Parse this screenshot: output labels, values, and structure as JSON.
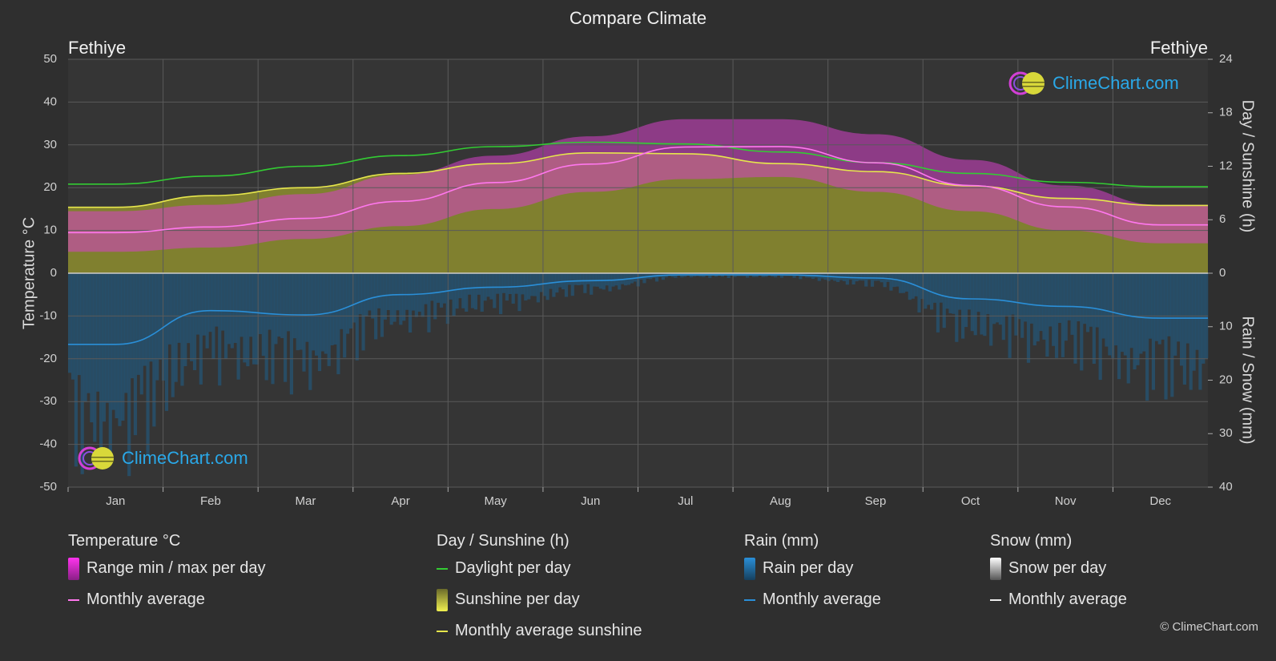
{
  "page": {
    "title": "Compare Climate",
    "location_left": "Fethiye",
    "location_right": "Fethiye",
    "copyright": "© ClimeChart.com",
    "logo_text": "ClimeChart.com"
  },
  "legend": {
    "temperature": {
      "heading": "Temperature °C",
      "range_label": "Range min / max per day",
      "avg_label": "Monthly average"
    },
    "sunshine": {
      "heading": "Day / Sunshine (h)",
      "daylight_label": "Daylight per day",
      "sunshine_label": "Sunshine per day",
      "avg_label": "Monthly average sunshine"
    },
    "rain": {
      "heading": "Rain (mm)",
      "rain_label": "Rain per day",
      "avg_label": "Monthly average"
    },
    "snow": {
      "heading": "Snow (mm)",
      "snow_label": "Snow per day",
      "avg_label": "Monthly average"
    }
  },
  "colors": {
    "background": "#2f2f2f",
    "temp_range": "#d63fc8",
    "temp_avg": "#ff77ee",
    "daylight": "#33cc33",
    "sunshine_fill": "#9a9a2e",
    "sunshine_avg": "#e6e64c",
    "rain": "#1e5f8a",
    "rain_avg": "#2a8fd8",
    "snow": "#dddddd",
    "logo": "#2aa8e8"
  },
  "chart_data": {
    "type": "area",
    "categories": [
      "Jan",
      "Feb",
      "Mar",
      "Apr",
      "May",
      "Jun",
      "Jul",
      "Aug",
      "Sep",
      "Oct",
      "Nov",
      "Dec"
    ],
    "y_left": {
      "label": "Temperature °C",
      "ticks": [
        50,
        40,
        30,
        20,
        10,
        0,
        -10,
        -20,
        -30,
        -40,
        -50
      ],
      "range": [
        -50,
        50
      ]
    },
    "y_right_top": {
      "label": "Day / Sunshine (h)",
      "ticks": [
        24,
        18,
        12,
        6,
        0
      ],
      "range": [
        0,
        24
      ]
    },
    "y_right_bottom": {
      "label": "Rain / Snow (mm)",
      "ticks": [
        0,
        10,
        20,
        30,
        40
      ],
      "range": [
        0,
        40
      ]
    },
    "grid": true,
    "series": [
      {
        "name": "Daylight per day",
        "unit": "h",
        "values": [
          10.0,
          10.9,
          12.0,
          13.2,
          14.2,
          14.7,
          14.5,
          13.6,
          12.4,
          11.2,
          10.2,
          9.7
        ]
      },
      {
        "name": "Monthly average sunshine",
        "unit": "h",
        "values": [
          7.4,
          8.7,
          9.6,
          11.2,
          12.3,
          13.5,
          13.4,
          12.3,
          11.4,
          9.8,
          8.4,
          7.6
        ]
      },
      {
        "name": "Monthly average",
        "unit": "°C",
        "values": [
          9.5,
          10.8,
          12.8,
          16.8,
          21.2,
          25.5,
          29.5,
          29.6,
          25.8,
          20.5,
          15.5,
          11.3
        ]
      },
      {
        "name": "Range min / max per day",
        "unit": "°C",
        "min": [
          5,
          6,
          8,
          11,
          15,
          19,
          22,
          22.5,
          19,
          14.5,
          10,
          7
        ],
        "max": [
          14.5,
          16,
          18.5,
          23,
          27.5,
          32,
          36,
          36,
          32.5,
          26.5,
          20.5,
          16
        ]
      },
      {
        "name": "Rain monthly average",
        "unit": "mm",
        "values": [
          13.3,
          7.0,
          7.8,
          4.0,
          2.6,
          1.4,
          0.3,
          0.3,
          0.9,
          4.8,
          6.2,
          8.4
        ]
      },
      {
        "name": "Snow monthly average",
        "unit": "mm",
        "values": [
          0,
          0,
          0,
          0,
          0,
          0,
          0,
          0,
          0,
          0,
          0,
          0
        ]
      }
    ]
  }
}
